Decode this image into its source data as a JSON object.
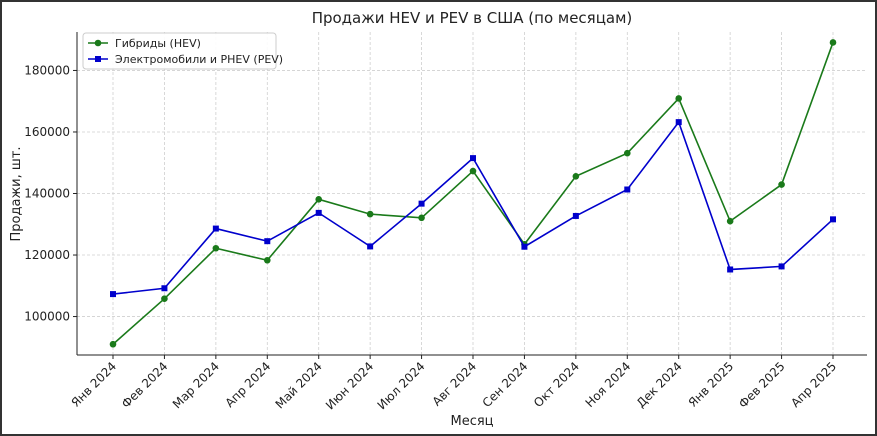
{
  "chart_data": {
    "type": "line",
    "title": "Продажи HEV и PEV в США (по месяцам)",
    "xlabel": "Месяц",
    "ylabel": "Продажи, шт.",
    "categories": [
      "Янв 2024",
      "Фев 2024",
      "Мар 2024",
      "Апр 2024",
      "Май 2024",
      "Июн 2024",
      "Июл 2024",
      "Авг 2024",
      "Сен 2024",
      "Окт 2024",
      "Ноя 2024",
      "Дек 2024",
      "Янв 2025",
      "Фев 2025",
      "Апр 2025"
    ],
    "yticks": [
      100000,
      120000,
      140000,
      160000,
      180000
    ],
    "ylim": [
      87500,
      192500
    ],
    "grid": true,
    "legend_position": "top-left",
    "series": [
      {
        "name": "Гибриды (HEV)",
        "color": "#1a7a1a",
        "marker": "circle",
        "values": [
          91000,
          105800,
          122200,
          118300,
          138100,
          133300,
          132100,
          147300,
          123500,
          145600,
          153100,
          170900,
          131000,
          142900,
          189100
        ]
      },
      {
        "name": "Электромобили и PHEV (PEV)",
        "color": "#0000cc",
        "marker": "square",
        "values": [
          107300,
          109200,
          128600,
          124500,
          133700,
          122800,
          136700,
          151500,
          122700,
          132700,
          141300,
          163200,
          115300,
          116300,
          131600
        ]
      }
    ]
  }
}
